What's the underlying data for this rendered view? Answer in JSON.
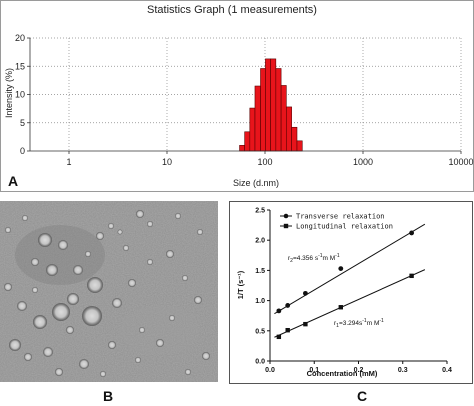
{
  "panels": {
    "a": "A",
    "b": "B",
    "c": "C"
  },
  "chart_data": [
    {
      "type": "bar",
      "title": "Statistics Graph (1 measurements)",
      "xlabel": "Size (d.nm)",
      "ylabel": "Intensity (%)",
      "xscale": "log",
      "xlim": [
        0.4,
        10000
      ],
      "ylim": [
        0,
        20
      ],
      "xticks": [
        1,
        10,
        100,
        1000,
        10000
      ],
      "yticks": [
        0,
        5,
        10,
        15,
        20
      ],
      "grid": "dotted",
      "bar_color": "#e8141b",
      "bins": [
        {
          "x0": 55,
          "x1": 62,
          "y": 1.0
        },
        {
          "x0": 62,
          "x1": 70,
          "y": 3.4
        },
        {
          "x0": 70,
          "x1": 79,
          "y": 7.6
        },
        {
          "x0": 79,
          "x1": 90,
          "y": 11.5
        },
        {
          "x0": 90,
          "x1": 101,
          "y": 14.6
        },
        {
          "x0": 101,
          "x1": 114,
          "y": 16.3
        },
        {
          "x0": 114,
          "x1": 129,
          "y": 16.3
        },
        {
          "x0": 129,
          "x1": 146,
          "y": 14.6
        },
        {
          "x0": 146,
          "x1": 165,
          "y": 11.6
        },
        {
          "x0": 165,
          "x1": 187,
          "y": 7.8
        },
        {
          "x0": 187,
          "x1": 212,
          "y": 4.2
        },
        {
          "x0": 212,
          "x1": 240,
          "y": 1.8
        }
      ]
    },
    {
      "type": "scatter",
      "xlabel": "Concentration (mM)",
      "ylabel": "1/T (s⁻¹)",
      "xlim": [
        0,
        0.4
      ],
      "ylim": [
        0,
        2.5
      ],
      "xticks": [
        0,
        0.1,
        0.2,
        0.3,
        0.4
      ],
      "xtick_labels": [
        "0.0",
        "0.1",
        "0.2",
        "0.3",
        "0.4"
      ],
      "yticks": [
        0,
        0.5,
        1.0,
        1.5,
        2.0,
        2.5
      ],
      "ytick_labels": [
        "0.0",
        "0.5",
        "1.0",
        "1.5",
        "2.0",
        "2.5"
      ],
      "legend_position": "top-left",
      "series": [
        {
          "name": "Transverse relaxation",
          "marker": "circle",
          "x": [
            0.02,
            0.04,
            0.08,
            0.16,
            0.32
          ],
          "y": [
            0.83,
            0.92,
            1.12,
            1.53,
            2.12
          ],
          "fit": {
            "slope": 4.356,
            "intercept": 0.74,
            "x_range": [
              0.01,
              0.35
            ]
          }
        },
        {
          "name": "Longitudinal relaxation",
          "marker": "square",
          "x": [
            0.02,
            0.04,
            0.08,
            0.16,
            0.32
          ],
          "y": [
            0.4,
            0.51,
            0.61,
            0.89,
            1.41
          ],
          "fit": {
            "slope": 3.294,
            "intercept": 0.36,
            "x_range": [
              0.01,
              0.35
            ]
          }
        }
      ],
      "annotations": [
        {
          "prefix": "r",
          "sub": "2",
          "text": "=4.356 s",
          "sup1": "-1",
          "mid": "m M",
          "sup2": "-1"
        },
        {
          "prefix": "r",
          "sub": "1",
          "text": "=3.294s",
          "sup1": "-1",
          "mid": "m M",
          "sup2": "-1"
        }
      ]
    }
  ]
}
